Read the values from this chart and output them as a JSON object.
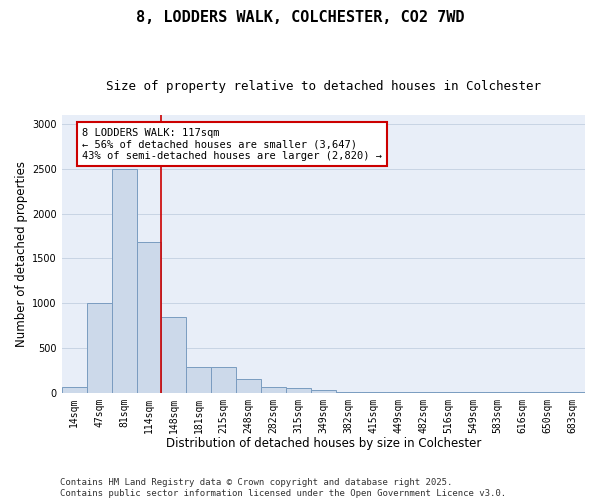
{
  "title_line1": "8, LODDERS WALK, COLCHESTER, CO2 7WD",
  "title_line2": "Size of property relative to detached houses in Colchester",
  "xlabel": "Distribution of detached houses by size in Colchester",
  "ylabel": "Number of detached properties",
  "categories": [
    "14sqm",
    "47sqm",
    "81sqm",
    "114sqm",
    "148sqm",
    "181sqm",
    "215sqm",
    "248sqm",
    "282sqm",
    "315sqm",
    "349sqm",
    "382sqm",
    "415sqm",
    "449sqm",
    "482sqm",
    "516sqm",
    "549sqm",
    "583sqm",
    "616sqm",
    "650sqm",
    "683sqm"
  ],
  "values": [
    60,
    1000,
    2500,
    1680,
    840,
    290,
    290,
    155,
    65,
    55,
    30,
    5,
    5,
    5,
    5,
    5,
    5,
    5,
    5,
    5,
    5
  ],
  "bar_color": "#ccd9ea",
  "bar_edge_color": "#7a9cc0",
  "vline_x_idx": 3,
  "vline_color": "#cc0000",
  "annotation_text": "8 LODDERS WALK: 117sqm\n← 56% of detached houses are smaller (3,647)\n43% of semi-detached houses are larger (2,820) →",
  "annotation_box_facecolor": "#ffffff",
  "annotation_box_edgecolor": "#cc0000",
  "ylim": [
    0,
    3100
  ],
  "yticks": [
    0,
    500,
    1000,
    1500,
    2000,
    2500,
    3000
  ],
  "grid_color": "#c8d4e4",
  "background_color": "#e8eef8",
  "footer_text": "Contains HM Land Registry data © Crown copyright and database right 2025.\nContains public sector information licensed under the Open Government Licence v3.0.",
  "title_fontsize": 11,
  "subtitle_fontsize": 9,
  "tick_fontsize": 7,
  "label_fontsize": 8.5,
  "annot_fontsize": 7.5,
  "footer_fontsize": 6.5
}
